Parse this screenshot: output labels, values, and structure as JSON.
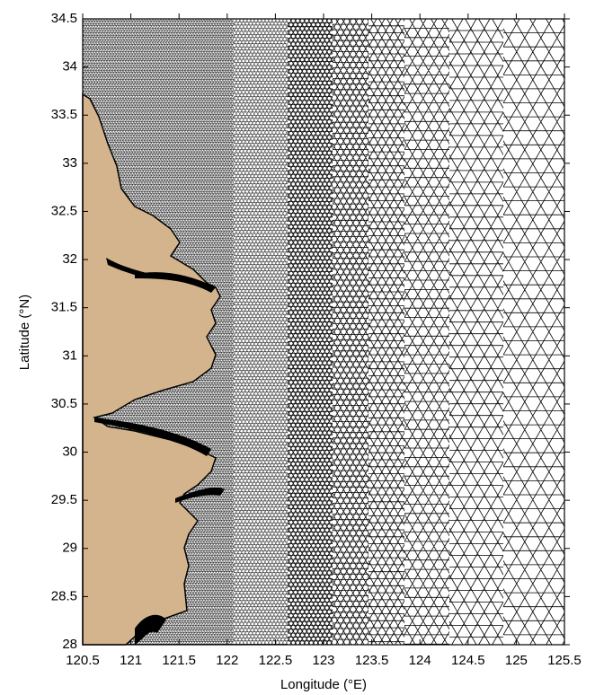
{
  "chart_data": {
    "type": "mesh",
    "xlabel": "Longitude (°E)",
    "ylabel": "Latitude (°N)",
    "xlim": [
      120.5,
      125.5
    ],
    "ylim": [
      28,
      34.5
    ],
    "xticks": [
      120.5,
      121,
      121.5,
      122,
      122.5,
      123,
      123.5,
      124,
      124.5,
      125,
      125.5
    ],
    "yticks": [
      28,
      28.5,
      29,
      29.5,
      30,
      30.5,
      31,
      31.5,
      32,
      32.5,
      33,
      33.5,
      34,
      34.5
    ],
    "land_color": "#d4b48c",
    "mesh_color": "#000000"
  }
}
